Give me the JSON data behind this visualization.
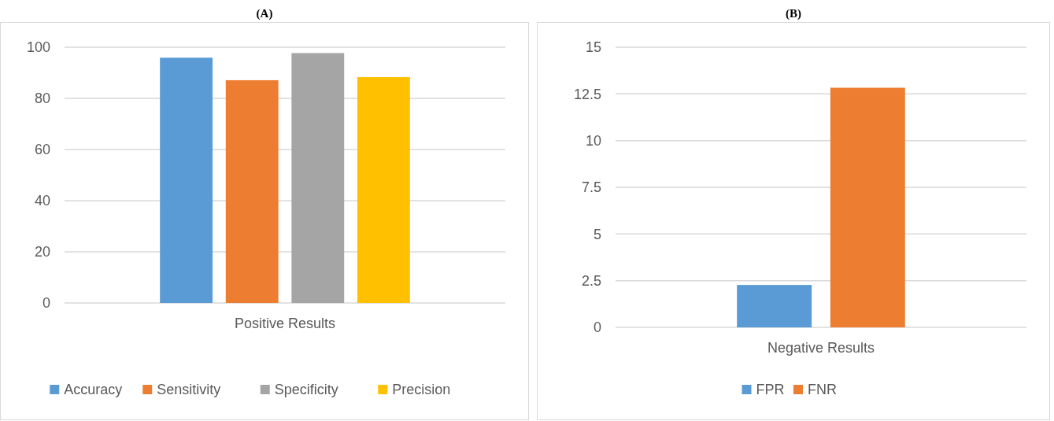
{
  "chart_data": [
    {
      "type": "bar",
      "title": "(A)",
      "categories": [
        "Positive Results"
      ],
      "series": [
        {
          "name": "Accuracy",
          "color": "#5b9bd5",
          "values": [
            95.9
          ]
        },
        {
          "name": "Sensitivity",
          "color": "#ed7d31",
          "values": [
            87.1
          ]
        },
        {
          "name": "Specificity",
          "color": "#a5a5a5",
          "values": [
            97.7
          ]
        },
        {
          "name": "Precision",
          "color": "#ffc000",
          "values": [
            88.3
          ]
        }
      ],
      "ylim": [
        0,
        100
      ],
      "yticks": [
        0,
        20,
        40,
        60,
        80,
        100
      ],
      "grid": "y",
      "legend": "bottom"
    },
    {
      "type": "bar",
      "title": "(B)",
      "categories": [
        "Negative Results"
      ],
      "series": [
        {
          "name": "FPR",
          "color": "#5b9bd5",
          "values": [
            2.27
          ]
        },
        {
          "name": "FNR",
          "color": "#ed7d31",
          "values": [
            12.83
          ]
        }
      ],
      "ylim": [
        0,
        15
      ],
      "yticks": [
        0,
        2.5,
        5,
        7.5,
        10,
        12.5,
        15
      ],
      "grid": "y",
      "legend": "bottom"
    }
  ]
}
